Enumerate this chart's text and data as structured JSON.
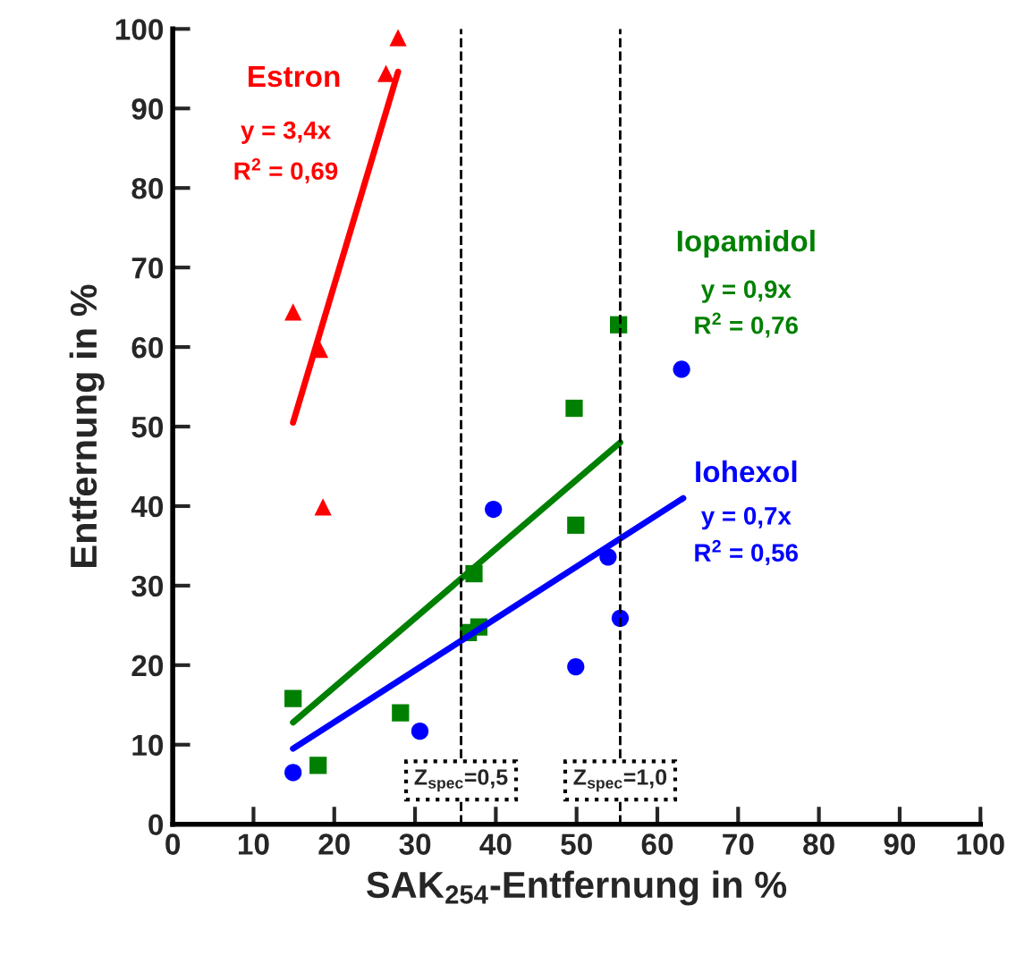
{
  "chart_data": {
    "type": "scatter",
    "xlabel": "SAK$_{254}$-Entfernung in %",
    "ylabel": "Entfernung in %",
    "xlim": [
      0,
      100
    ],
    "xticks": [
      0,
      10,
      20,
      30,
      40,
      50,
      60,
      70,
      80,
      90,
      100
    ],
    "ylim": [
      0,
      100
    ],
    "yticks": [
      0,
      10,
      20,
      30,
      40,
      50,
      60,
      70,
      80,
      90,
      100
    ],
    "grid": false,
    "legend": false,
    "series": [
      {
        "name": "Estron",
        "color": "#ff0000",
        "marker": "triangle",
        "x": [
          27.9,
          26.4,
          14.9,
          18.2,
          18.6
        ],
        "values": [
          98.9,
          94.4,
          64.4,
          59.7,
          39.9
        ]
      },
      {
        "name": "Iopamidol",
        "color": "#008000",
        "marker": "square",
        "x": [
          14.9,
          18.0,
          28.2,
          37.3,
          36.6,
          37.9,
          49.9,
          49.7,
          55.2
        ],
        "values": [
          15.8,
          7.4,
          14.0,
          31.5,
          24.1,
          24.8,
          37.6,
          52.3,
          62.8
        ]
      },
      {
        "name": "Iohexol",
        "color": "#0000ff",
        "marker": "circle",
        "x": [
          14.9,
          30.6,
          39.7,
          53.9,
          55.4,
          49.9,
          63.0
        ],
        "values": [
          6.5,
          11.7,
          39.6,
          33.6,
          25.9,
          19.8,
          57.2
        ]
      },
      {
        "type": "line",
        "color": "#ff0000",
        "marker": "none",
        "line_style": "solid",
        "x": [
          14.9,
          27.9
        ],
        "values": [
          50.5,
          94.6
        ]
      },
      {
        "type": "line",
        "color": "#008000",
        "marker": "none",
        "line_style": "solid",
        "x": [
          14.9,
          55.4
        ],
        "values": [
          12.8,
          48.0
        ]
      },
      {
        "type": "line",
        "color": "#0000ff",
        "marker": "none",
        "line_style": "solid",
        "x": [
          14.9,
          63.2
        ],
        "values": [
          9.5,
          41.0
        ]
      }
    ],
    "ref_lines": [
      {
        "axis": "x",
        "value": 35.7,
        "color": "#000000",
        "line_style": "dashed"
      },
      {
        "axis": "x",
        "value": 55.4,
        "color": "#000000",
        "line_style": "dashed"
      }
    ],
    "annotations": [
      "y = 3,4x",
      "R$^{2}$ = 0,69",
      "y = 0,9x",
      "R$^{2}$ = 0,76",
      "y = 0,7x",
      "R$^{2}$ = 0,56",
      "Z$_{spec}$=0,5",
      "Z$_{spec}$=1,0"
    ]
  }
}
